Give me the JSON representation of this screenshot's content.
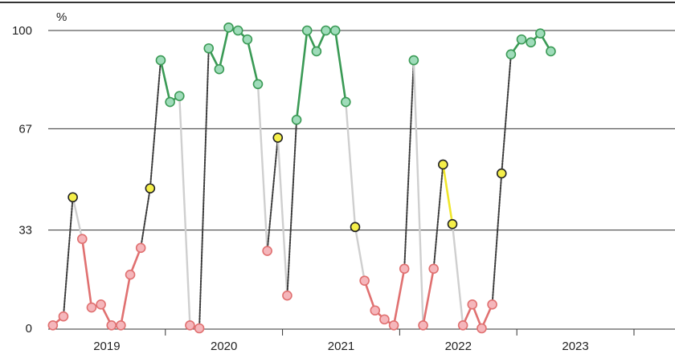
{
  "chart_data": {
    "type": "line",
    "unit_label": "%",
    "ylim": [
      0,
      100
    ],
    "y_ticks": [
      {
        "value": 0,
        "label": "0"
      },
      {
        "value": 33,
        "label": "33"
      },
      {
        "value": 67,
        "label": "67"
      },
      {
        "value": 100,
        "label": "100"
      }
    ],
    "xlim": [
      2018.5,
      2023.85
    ],
    "x_ticks": [
      {
        "value": 2019,
        "label": "2019"
      },
      {
        "value": 2020,
        "label": "2020"
      },
      {
        "value": 2021,
        "label": "2021"
      },
      {
        "value": 2022,
        "label": "2022"
      },
      {
        "value": 2023,
        "label": "2023"
      }
    ],
    "grid": "horizontal",
    "legend": "none",
    "colors": {
      "green": "#3a9a55",
      "green_fill": "#9fdcba",
      "red": "#e07070",
      "red_fill": "#f5b6bb",
      "yellow": "#f0e62a",
      "yellow_fill": "#f5ef4a",
      "connector_light": "#cfcfcf",
      "connector_dark": "#3a3a3a",
      "marker_stroke_yellow": "#222222",
      "grid": "#333333"
    },
    "points": [
      {
        "x": 2018.54,
        "y": 1,
        "c": "red"
      },
      {
        "x": 2018.63,
        "y": 4,
        "c": "red"
      },
      {
        "x": 2018.71,
        "y": 44,
        "c": "yellow"
      },
      {
        "x": 2018.79,
        "y": 30,
        "c": "red"
      },
      {
        "x": 2018.87,
        "y": 7,
        "c": "red"
      },
      {
        "x": 2018.95,
        "y": 8,
        "c": "red"
      },
      {
        "x": 2019.04,
        "y": 1,
        "c": "red"
      },
      {
        "x": 2019.12,
        "y": 1,
        "c": "red"
      },
      {
        "x": 2019.2,
        "y": 18,
        "c": "red"
      },
      {
        "x": 2019.29,
        "y": 27,
        "c": "red"
      },
      {
        "x": 2019.37,
        "y": 47,
        "c": "yellow"
      },
      {
        "x": 2019.46,
        "y": 90,
        "c": "green"
      },
      {
        "x": 2019.54,
        "y": 76,
        "c": "green"
      },
      {
        "x": 2019.62,
        "y": 78,
        "c": "green"
      },
      {
        "x": 2019.71,
        "y": 1,
        "c": "red"
      },
      {
        "x": 2019.79,
        "y": 0,
        "c": "red"
      },
      {
        "x": 2019.87,
        "y": 94,
        "c": "green"
      },
      {
        "x": 2019.96,
        "y": 87,
        "c": "green"
      },
      {
        "x": 2020.04,
        "y": 101,
        "c": "green"
      },
      {
        "x": 2020.12,
        "y": 100,
        "c": "green"
      },
      {
        "x": 2020.2,
        "y": 97,
        "c": "green"
      },
      {
        "x": 2020.29,
        "y": 82,
        "c": "green"
      },
      {
        "x": 2020.37,
        "y": 26,
        "c": "red"
      },
      {
        "x": 2020.46,
        "y": 64,
        "c": "yellow"
      },
      {
        "x": 2020.54,
        "y": 11,
        "c": "red"
      },
      {
        "x": 2020.62,
        "y": 70,
        "c": "green"
      },
      {
        "x": 2020.71,
        "y": 100,
        "c": "green"
      },
      {
        "x": 2020.79,
        "y": 93,
        "c": "green"
      },
      {
        "x": 2020.87,
        "y": 100,
        "c": "green"
      },
      {
        "x": 2020.95,
        "y": 100,
        "c": "green"
      },
      {
        "x": 2021.04,
        "y": 76,
        "c": "green"
      },
      {
        "x": 2021.12,
        "y": 34,
        "c": "yellow"
      },
      {
        "x": 2021.2,
        "y": 16,
        "c": "red"
      },
      {
        "x": 2021.29,
        "y": 6,
        "c": "red"
      },
      {
        "x": 2021.37,
        "y": 3,
        "c": "red"
      },
      {
        "x": 2021.45,
        "y": 1,
        "c": "red"
      },
      {
        "x": 2021.54,
        "y": 20,
        "c": "red"
      },
      {
        "x": 2021.62,
        "y": 90,
        "c": "green"
      },
      {
        "x": 2021.7,
        "y": 1,
        "c": "red"
      },
      {
        "x": 2021.79,
        "y": 20,
        "c": "red"
      },
      {
        "x": 2021.87,
        "y": 55,
        "c": "yellow"
      },
      {
        "x": 2021.95,
        "y": 35,
        "c": "yellow"
      },
      {
        "x": 2022.04,
        "y": 1,
        "c": "red"
      },
      {
        "x": 2022.12,
        "y": 8,
        "c": "red"
      },
      {
        "x": 2022.2,
        "y": 0,
        "c": "red"
      },
      {
        "x": 2022.29,
        "y": 8,
        "c": "red"
      },
      {
        "x": 2022.37,
        "y": 52,
        "c": "yellow"
      },
      {
        "x": 2022.45,
        "y": 92,
        "c": "green"
      },
      {
        "x": 2022.54,
        "y": 97,
        "c": "green"
      },
      {
        "x": 2022.62,
        "y": 96,
        "c": "green"
      },
      {
        "x": 2022.7,
        "y": 99,
        "c": "green"
      },
      {
        "x": 2022.79,
        "y": 93,
        "c": "green"
      }
    ]
  }
}
